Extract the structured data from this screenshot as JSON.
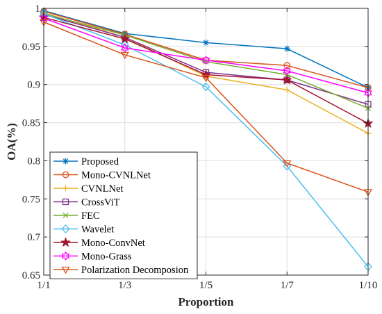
{
  "chart_data": {
    "type": "line",
    "xlabel": "Proportion",
    "ylabel": "OA(%)",
    "categories": [
      "1/1",
      "1/3",
      "1/5",
      "1/7",
      "1/10"
    ],
    "ylim": [
      0.65,
      1.0
    ],
    "yticks": [
      "0.65",
      "0.7",
      "0.75",
      "0.8",
      "0.85",
      "0.9",
      "0.95",
      "1"
    ],
    "grid": true,
    "legend_position": "bottom-left",
    "series": [
      {
        "name": "Proposed",
        "values": [
          0.997,
          0.967,
          0.955,
          0.947,
          0.896
        ],
        "color": "#0072BD",
        "marker": "asterisk"
      },
      {
        "name": "Mono-CVNLNet",
        "values": [
          0.996,
          0.966,
          0.932,
          0.925,
          0.896
        ],
        "color": "#D95319",
        "marker": "circle"
      },
      {
        "name": "CVNLNet",
        "values": [
          0.994,
          0.962,
          0.911,
          0.893,
          0.836
        ],
        "color": "#EDB120",
        "marker": "plus"
      },
      {
        "name": "CrossViT",
        "values": [
          0.992,
          0.962,
          0.916,
          0.906,
          0.874
        ],
        "color": "#7E2F8E",
        "marker": "square"
      },
      {
        "name": "FEC",
        "values": [
          0.993,
          0.965,
          0.93,
          0.913,
          0.869
        ],
        "color": "#77AC30",
        "marker": "x"
      },
      {
        "name": "Wavelet",
        "values": [
          0.993,
          0.952,
          0.897,
          0.793,
          0.661
        ],
        "color": "#4DBEEE",
        "marker": "diamond"
      },
      {
        "name": "Mono-ConvNet",
        "values": [
          0.988,
          0.96,
          0.913,
          0.906,
          0.849
        ],
        "color": "#A2142F",
        "marker": "pentagram"
      },
      {
        "name": "Mono-Grass",
        "values": [
          0.987,
          0.948,
          0.932,
          0.918,
          0.889
        ],
        "color": "#FF00FF",
        "marker": "hexagram"
      },
      {
        "name": "Polarization Decomposion",
        "values": [
          0.982,
          0.939,
          0.909,
          0.797,
          0.759
        ],
        "color": "#D95319",
        "marker": "triangle-down"
      }
    ]
  }
}
